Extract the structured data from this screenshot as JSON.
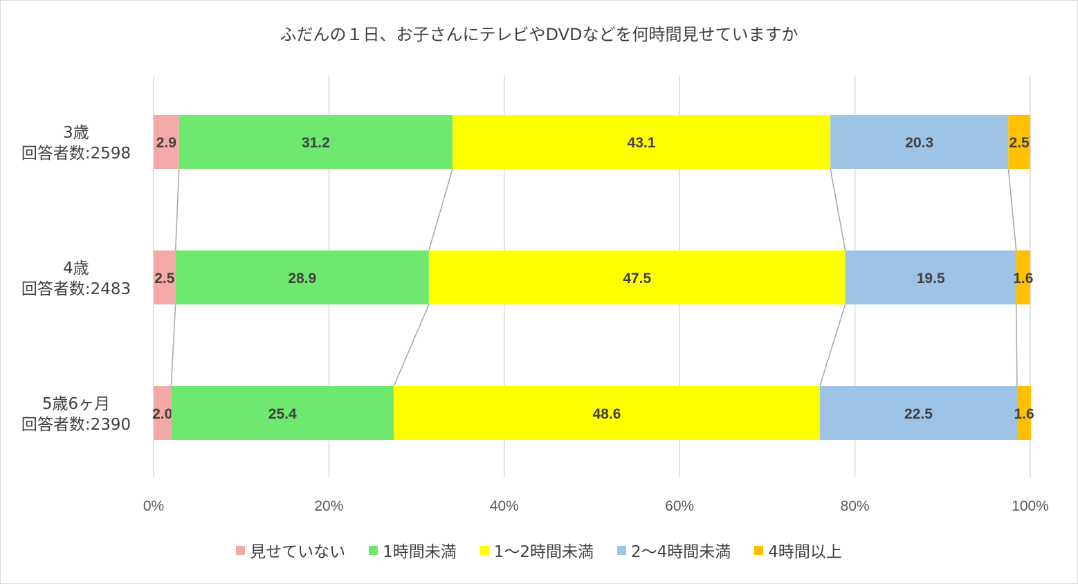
{
  "chart_data": {
    "type": "bar",
    "orientation": "horizontal",
    "stacked": "100%",
    "title": "ふだんの１日、お子さんにテレビやDVDなどを何時間見せていますか",
    "categories": [
      [
        "3歳",
        "回答者数:2598"
      ],
      [
        "4歳",
        "回答者数:2483"
      ],
      [
        "5歳6ヶ月",
        "回答者数:2390"
      ]
    ],
    "series": [
      {
        "name": "見せていない",
        "color": "#f4a9a8",
        "values": [
          2.9,
          2.5,
          2.0
        ]
      },
      {
        "name": "1時間未満",
        "color": "#6ee86e",
        "values": [
          31.2,
          28.9,
          25.4
        ]
      },
      {
        "name": "1〜2時間未満",
        "color": "#ffff00",
        "values": [
          43.1,
          47.5,
          48.6
        ]
      },
      {
        "name": "2〜4時間未満",
        "color": "#9dc3e6",
        "values": [
          20.3,
          19.5,
          22.5
        ]
      },
      {
        "name": "4時間以上",
        "color": "#ffc000",
        "values": [
          2.5,
          1.6,
          1.6
        ]
      }
    ],
    "xlim": [
      0,
      100
    ],
    "xticks": [
      "0%",
      "20%",
      "40%",
      "60%",
      "80%",
      "100%"
    ],
    "grid": true,
    "series_lines": true,
    "legend_position": "bottom"
  }
}
